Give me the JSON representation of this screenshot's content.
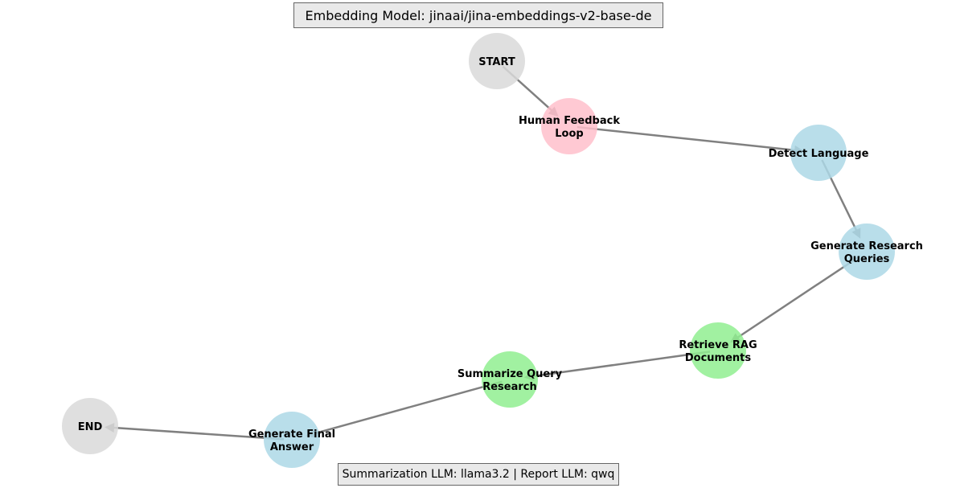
{
  "header": {
    "title": "Embedding Model: jinaai/jina-embeddings-v2-base-de"
  },
  "footer": {
    "text": "Summarization LLM: llama3.2 | Report LLM: qwq"
  },
  "colors": {
    "terminal": "#d9d9d9",
    "feedback": "#ffc0cb",
    "process": "#add8e6",
    "retrieval": "#90ee90",
    "edge": "#808080"
  },
  "nodes": [
    {
      "id": "start",
      "lines": [
        "START"
      ],
      "kind": "terminal"
    },
    {
      "id": "human_feedback",
      "lines": [
        "Human Feedback",
        "Loop"
      ],
      "kind": "feedback"
    },
    {
      "id": "detect_language",
      "lines": [
        "Detect Language"
      ],
      "kind": "process"
    },
    {
      "id": "generate_queries",
      "lines": [
        "Generate Research",
        "Queries"
      ],
      "kind": "process"
    },
    {
      "id": "retrieve_rag",
      "lines": [
        "Retrieve RAG",
        "Documents"
      ],
      "kind": "retrieval"
    },
    {
      "id": "summarize",
      "lines": [
        "Summarize Query",
        "Research"
      ],
      "kind": "retrieval"
    },
    {
      "id": "final_answer",
      "lines": [
        "Generate Final",
        "Answer"
      ],
      "kind": "process"
    },
    {
      "id": "end",
      "lines": [
        "END"
      ],
      "kind": "terminal"
    }
  ],
  "edges": [
    {
      "from": "start",
      "to": "human_feedback"
    },
    {
      "from": "human_feedback",
      "to": "detect_language"
    },
    {
      "from": "detect_language",
      "to": "generate_queries"
    },
    {
      "from": "generate_queries",
      "to": "retrieve_rag"
    },
    {
      "from": "retrieve_rag",
      "to": "summarize"
    },
    {
      "from": "summarize",
      "to": "final_answer"
    },
    {
      "from": "final_answer",
      "to": "end"
    }
  ]
}
